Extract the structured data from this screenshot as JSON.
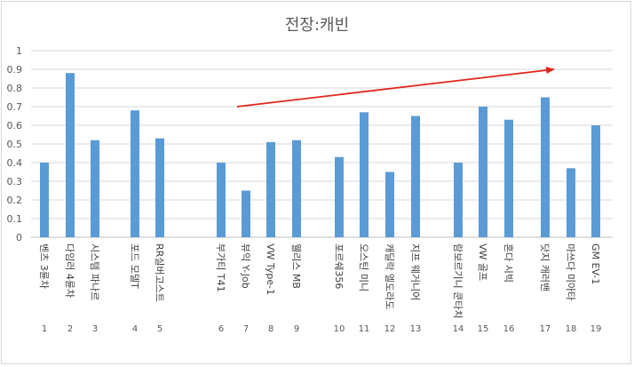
{
  "chart_data": {
    "type": "bar",
    "title": "전장:캐빈",
    "xlabel": "",
    "ylabel": "",
    "ylim": [
      0,
      1
    ],
    "yticks": [
      "0",
      "0.1",
      "0.2",
      "0.3",
      "0.4",
      "0.5",
      "0.6",
      "0.7",
      "0.8",
      "0.9",
      "1"
    ],
    "grid": true,
    "bar_color": "#5b9bd5",
    "arrow_color": "#e0261c",
    "categories": [
      "벤츠 3륜차",
      "다임러 4륜차",
      "시스템 파나르",
      "포드 모델T",
      "RR실버고스트",
      "부가티 T41",
      "뷰익 Y-Job",
      "VW Type-1",
      "웰리스 MB",
      "포르쉐356",
      "오스틴 미니",
      "캐딜락 엘도라도",
      "지프 웨거니어",
      "람보르기니 쿤타치",
      "VW 골프",
      "혼다 시빅",
      "닷지 캐러밴",
      "마쓰다 미아타",
      "GM EV-1"
    ],
    "numbers": [
      "1",
      "2",
      "3",
      "4",
      "5",
      "6",
      "7",
      "8",
      "9",
      "10",
      "11",
      "12",
      "13",
      "14",
      "15",
      "16",
      "17",
      "18",
      "19"
    ],
    "values": [
      0.4,
      0.88,
      0.52,
      0.68,
      0.53,
      0.4,
      0.25,
      0.51,
      0.52,
      0.43,
      0.67,
      0.35,
      0.65,
      0.4,
      0.7,
      0.63,
      0.75,
      0.37,
      0.6
    ],
    "trend_arrow": {
      "from_value": 0.7,
      "to_value": 0.9
    }
  }
}
